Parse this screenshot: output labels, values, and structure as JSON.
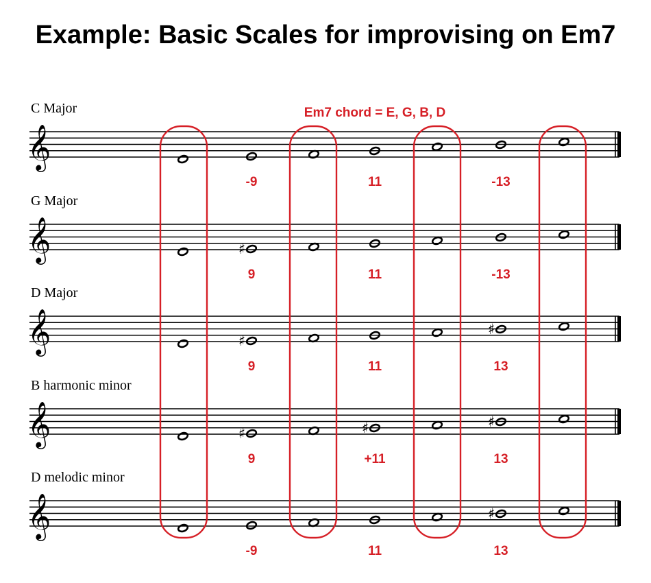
{
  "title": "Example: Basic Scales for improvising on Em7",
  "chord_label": "Em7 chord = E, G, B, D",
  "colors": {
    "highlight": "#d61f26",
    "ink": "#000000"
  },
  "clef_icon": "treble-clef-icon",
  "chord_tone_columns": [
    0,
    2,
    4,
    6
  ],
  "scales": [
    {
      "name": "C Major",
      "notes": [
        {
          "sharp": false
        },
        {
          "sharp": false
        },
        {
          "sharp": false
        },
        {
          "sharp": false
        },
        {
          "sharp": false
        },
        {
          "sharp": false
        },
        {
          "sharp": false
        }
      ],
      "extensions": [
        "-9",
        "11",
        "-13"
      ]
    },
    {
      "name": "G Major",
      "notes": [
        {
          "sharp": false
        },
        {
          "sharp": true
        },
        {
          "sharp": false
        },
        {
          "sharp": false
        },
        {
          "sharp": false
        },
        {
          "sharp": false
        },
        {
          "sharp": false
        }
      ],
      "extensions": [
        "9",
        "11",
        "-13"
      ]
    },
    {
      "name": "D Major",
      "notes": [
        {
          "sharp": false
        },
        {
          "sharp": true
        },
        {
          "sharp": false
        },
        {
          "sharp": false
        },
        {
          "sharp": false
        },
        {
          "sharp": true
        },
        {
          "sharp": false
        }
      ],
      "extensions": [
        "9",
        "11",
        "13"
      ]
    },
    {
      "name": "B harmonic minor",
      "notes": [
        {
          "sharp": false
        },
        {
          "sharp": true
        },
        {
          "sharp": false
        },
        {
          "sharp": true
        },
        {
          "sharp": false
        },
        {
          "sharp": true
        },
        {
          "sharp": false
        }
      ],
      "extensions": [
        "9",
        "+11",
        "13"
      ]
    },
    {
      "name": "D melodic minor",
      "notes": [
        {
          "sharp": false
        },
        {
          "sharp": false
        },
        {
          "sharp": false
        },
        {
          "sharp": false
        },
        {
          "sharp": false
        },
        {
          "sharp": true
        },
        {
          "sharp": false
        }
      ],
      "extensions": [
        "-9",
        "11",
        "13"
      ]
    }
  ]
}
